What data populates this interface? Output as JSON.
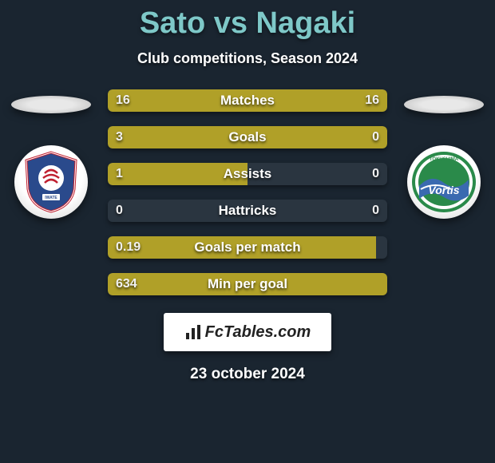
{
  "title": "Sato vs Nagaki",
  "subtitle": "Club competitions, Season 2024",
  "colors": {
    "bar_fill": "#b0a028",
    "bar_empty": "#2a3540",
    "title_color": "#7ec8c8",
    "background": "#1a2530"
  },
  "badges": {
    "left": {
      "name": "club-badge-left"
    },
    "right": {
      "name": "club-badge-right"
    }
  },
  "stats": [
    {
      "label": "Matches",
      "left_val": "16",
      "right_val": "16",
      "left_pct": 50,
      "right_pct": 50
    },
    {
      "label": "Goals",
      "left_val": "3",
      "right_val": "0",
      "left_pct": 76,
      "right_pct": 24
    },
    {
      "label": "Assists",
      "left_val": "1",
      "right_val": "0",
      "left_pct": 50,
      "right_pct": 0
    },
    {
      "label": "Hattricks",
      "left_val": "0",
      "right_val": "0",
      "left_pct": 0,
      "right_pct": 0
    },
    {
      "label": "Goals per match",
      "left_val": "0.19",
      "right_val": "",
      "left_pct": 96,
      "right_pct": 0
    },
    {
      "label": "Min per goal",
      "left_val": "634",
      "right_val": "",
      "left_pct": 100,
      "right_pct": 0
    }
  ],
  "footer": {
    "logo_text": "FcTables.com",
    "date": "23 october 2024"
  }
}
